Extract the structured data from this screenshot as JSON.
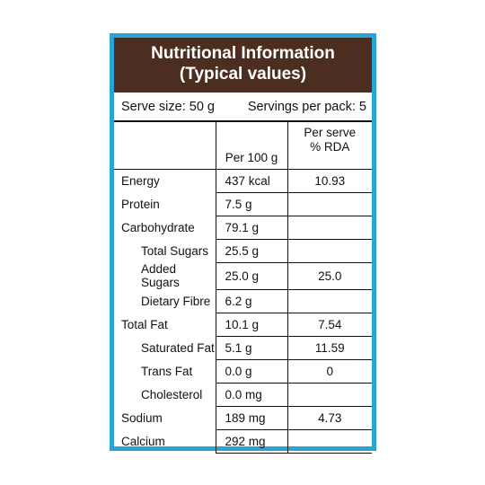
{
  "title_line1": "Nutritional Information",
  "title_line2": "(Typical values)",
  "serve_size": "Serve size: 50 g",
  "servings_per_pack": "Servings per pack: 5",
  "col_per100": "Per 100 g",
  "col_rda_line1": "Per serve",
  "col_rda_line2": "% RDA",
  "rows": [
    {
      "name": "Energy",
      "per100": "437 kcal",
      "rda": "10.93",
      "indent": false
    },
    {
      "name": "Protein",
      "per100": "7.5 g",
      "rda": "",
      "indent": false
    },
    {
      "name": "Carbohydrate",
      "per100": "79.1 g",
      "rda": "",
      "indent": false
    },
    {
      "name": "Total Sugars",
      "per100": "25.5 g",
      "rda": "",
      "indent": true
    },
    {
      "name": "Added Sugars",
      "per100": "25.0 g",
      "rda": "25.0",
      "indent": true
    },
    {
      "name": "Dietary Fibre",
      "per100": "6.2 g",
      "rda": "",
      "indent": true
    },
    {
      "name": "Total Fat",
      "per100": "10.1 g",
      "rda": "7.54",
      "indent": false
    },
    {
      "name": "Saturated Fat",
      "per100": "5.1 g",
      "rda": "11.59",
      "indent": true
    },
    {
      "name": "Trans Fat",
      "per100": "0.0 g",
      "rda": "0",
      "indent": true
    },
    {
      "name": "Cholesterol",
      "per100": "0.0 mg",
      "rda": "",
      "indent": true
    },
    {
      "name": "Sodium",
      "per100": "189 mg",
      "rda": "4.73",
      "indent": false
    },
    {
      "name": "Calcium",
      "per100": "292 mg",
      "rda": "",
      "indent": false
    }
  ],
  "colors": {
    "border": "#2aa3d6",
    "header_bg": "#4b2e20",
    "header_text": "#ffffff"
  }
}
